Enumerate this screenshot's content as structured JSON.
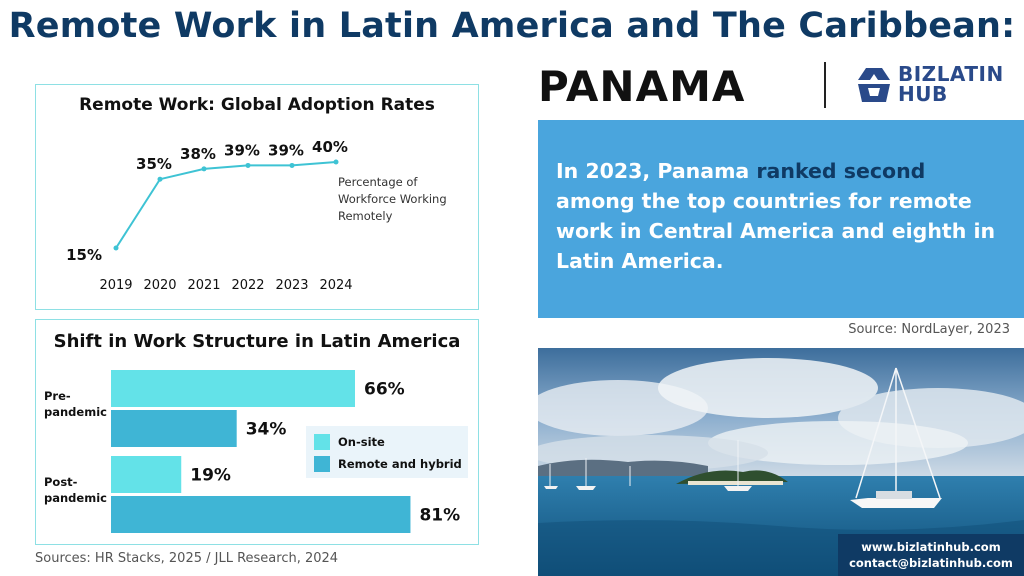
{
  "header": {
    "title": "Remote Work in Latin America and The Caribbean:",
    "country": "PANAMA"
  },
  "brand": {
    "line1": "BIZLATIN",
    "line2": "HUB",
    "mark_color": "#2a4a8a"
  },
  "colors": {
    "title": "#0f3a64",
    "line": "#3ec3d4",
    "onsite": "#63e2e8",
    "remote": "#3fb5d5",
    "callout_bg": "#4aa5dd",
    "callout_highlight": "#0f3a64"
  },
  "chart_data": [
    {
      "type": "line",
      "title": "Remote Work: Global Adoption Rates",
      "x": [
        "2019",
        "2020",
        "2021",
        "2022",
        "2023",
        "2024"
      ],
      "values": [
        15,
        35,
        38,
        39,
        39,
        40
      ],
      "data_labels": [
        "15%",
        "35%",
        "38%",
        "39%",
        "39%",
        "40%"
      ],
      "annotation": [
        "Percentage of",
        "Workforce Working",
        "Remotely"
      ],
      "grid": false
    },
    {
      "type": "bar",
      "orientation": "horizontal",
      "title": "Shift in Work Structure in Latin America",
      "categories": [
        [
          "Pre-",
          "pandemic"
        ],
        [
          "Post-",
          "pandemic"
        ]
      ],
      "series": [
        {
          "name": "On-site",
          "values": [
            66,
            19
          ],
          "labels": [
            "66%",
            "19%"
          ]
        },
        {
          "name": "Remote and hybrid",
          "values": [
            34,
            81
          ],
          "labels": [
            "34%",
            "81%"
          ]
        }
      ],
      "legend": "right",
      "grid": false
    }
  ],
  "sources_left": "Sources: HR Stacks, 2025 /  JLL Research, 2024",
  "callout": {
    "before": "In 2023, Panama ",
    "highlight": "ranked second",
    "after": " among the top countries for remote work in Central America and eighth in Latin America."
  },
  "source_right": "Source:  NordLayer, 2023",
  "contact": {
    "website": "www.bizlatinhub.com",
    "email": "contact@bizlatinhub.com"
  }
}
